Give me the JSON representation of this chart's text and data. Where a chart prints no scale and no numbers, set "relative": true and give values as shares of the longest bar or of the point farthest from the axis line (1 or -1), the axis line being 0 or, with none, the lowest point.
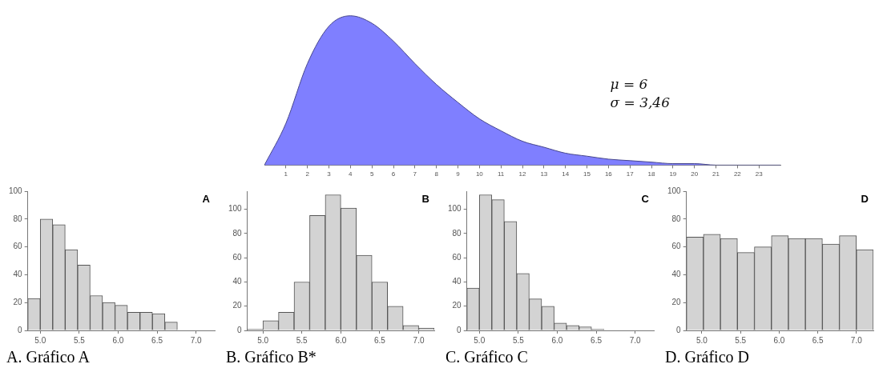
{
  "chart_data": [
    {
      "type": "area",
      "x": [
        0,
        1,
        2,
        3,
        4,
        5,
        6,
        7,
        8,
        9,
        10,
        11,
        12,
        13,
        14,
        15,
        16,
        17,
        18,
        19,
        20,
        21,
        22,
        23,
        24
      ],
      "values": [
        0,
        0.28,
        0.68,
        0.93,
        1,
        0.95,
        0.83,
        0.68,
        0.54,
        0.42,
        0.31,
        0.23,
        0.16,
        0.12,
        0.08,
        0.06,
        0.04,
        0.03,
        0.02,
        0.01,
        0.01,
        0,
        0,
        0,
        0
      ],
      "relative": true,
      "color": "#7f7fff",
      "xlim": [
        0,
        24
      ],
      "xticks": [
        1,
        2,
        3,
        4,
        5,
        6,
        7,
        8,
        9,
        10,
        11,
        12,
        13,
        14,
        15,
        16,
        17,
        18,
        19,
        20,
        21,
        22,
        23
      ],
      "grid": false,
      "annotations": [
        "μ = 6",
        "σ = 3,46"
      ]
    },
    {
      "type": "histogram",
      "title": "A",
      "bins": [
        4.84,
        5.0,
        5.16,
        5.32,
        5.48,
        5.64,
        5.8,
        5.96,
        6.12,
        6.28,
        6.44,
        6.6,
        6.76,
        6.92,
        7.08,
        7.24
      ],
      "values": [
        23,
        80,
        76,
        58,
        47,
        25,
        20,
        18,
        13,
        13,
        12,
        6,
        0,
        0,
        0
      ],
      "color": "#d3d3d3",
      "xlim": [
        4.84,
        7.24
      ],
      "xticks": [
        {
          "value": 5,
          "label": "5.0"
        },
        {
          "value": 5.5,
          "label": "5.5"
        },
        {
          "value": 6,
          "label": "6.0"
        },
        {
          "value": 6.5,
          "label": "6.5"
        },
        {
          "value": 7,
          "label": "7.0"
        }
      ],
      "ylim": [
        0,
        100
      ],
      "yticks": [
        0,
        20,
        40,
        60,
        80,
        100
      ],
      "grid": false,
      "annotations": [
        "A. Gráfico A"
      ]
    },
    {
      "type": "histogram",
      "title": "B",
      "bins": [
        4.8,
        5.0,
        5.2,
        5.4,
        5.6,
        5.8,
        6.0,
        6.2,
        6.4,
        6.6,
        6.8,
        7.0,
        7.2
      ],
      "values": [
        1,
        8,
        15,
        40,
        95,
        112,
        101,
        62,
        40,
        20,
        4,
        2
      ],
      "color": "#d3d3d3",
      "xlim": [
        4.8,
        7.2
      ],
      "xticks": [
        {
          "value": 5,
          "label": "5.0"
        },
        {
          "value": 5.5,
          "label": "5.5"
        },
        {
          "value": 6,
          "label": "6.0"
        },
        {
          "value": 6.5,
          "label": "6.5"
        },
        {
          "value": 7,
          "label": "7.0"
        }
      ],
      "ylim": [
        0,
        115
      ],
      "yticks": [
        0,
        20,
        40,
        60,
        80,
        100
      ],
      "grid": false,
      "annotations": [
        "B. Gráfico B*"
      ]
    },
    {
      "type": "histogram",
      "title": "C",
      "bins": [
        4.84,
        5.0,
        5.16,
        5.32,
        5.48,
        5.64,
        5.8,
        5.96,
        6.12,
        6.28,
        6.44,
        6.6,
        6.76,
        6.92,
        7.08,
        7.24
      ],
      "values": [
        35,
        112,
        108,
        90,
        47,
        26,
        20,
        6,
        4,
        3,
        1,
        0,
        0,
        0,
        0
      ],
      "color": "#d3d3d3",
      "xlim": [
        4.84,
        7.24
      ],
      "xticks": [
        {
          "value": 5,
          "label": "5.0"
        },
        {
          "value": 5.5,
          "label": "5.5"
        },
        {
          "value": 6,
          "label": "6.0"
        },
        {
          "value": 6.5,
          "label": "6.5"
        },
        {
          "value": 7,
          "label": "7.0"
        }
      ],
      "ylim": [
        0,
        115
      ],
      "yticks": [
        0,
        20,
        40,
        60,
        80,
        100
      ],
      "grid": false,
      "annotations": [
        "C. Gráfico C"
      ]
    },
    {
      "type": "histogram",
      "title": "D",
      "bins": [
        4.8,
        5.02,
        5.24,
        5.46,
        5.68,
        5.9,
        6.12,
        6.34,
        6.56,
        6.78,
        7.0,
        7.22
      ],
      "values": [
        67,
        69,
        66,
        56,
        60,
        68,
        66,
        66,
        62,
        68,
        58
      ],
      "color": "#d3d3d3",
      "xlim": [
        4.8,
        7.22
      ],
      "xticks": [
        {
          "value": 5,
          "label": "5.0"
        },
        {
          "value": 5.5,
          "label": "5.5"
        },
        {
          "value": 6,
          "label": "6.0"
        },
        {
          "value": 6.5,
          "label": "6.5"
        },
        {
          "value": 7,
          "label": "7.0"
        }
      ],
      "ylim": [
        0,
        100
      ],
      "yticks": [
        0,
        20,
        40,
        60,
        80,
        100
      ],
      "grid": false,
      "annotations": [
        "D. Gráfico D"
      ]
    }
  ]
}
